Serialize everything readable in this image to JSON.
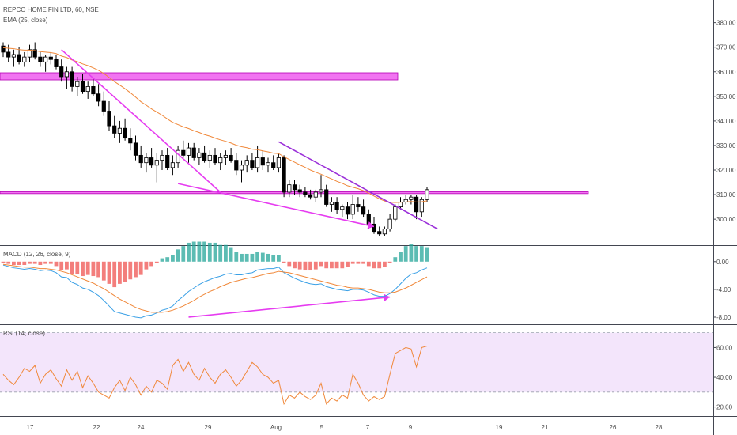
{
  "header": {
    "symbol_line": "REPCO HOME FIN LTD, 60, NSE",
    "ema_label": "EMA (25, close)"
  },
  "macd_panel": {
    "label": "MACD (12, 26, close, 9)"
  },
  "rsi_panel": {
    "label": "RSI (14, close)"
  },
  "colors": {
    "up_candle": "#ffffff",
    "down_candle": "#000000",
    "ema": "#f0883a",
    "zone": "#ee5cee",
    "trendline_magenta": "#e63cf0",
    "trendline_purple": "#9b30d9",
    "macd_line": "#3aa0e6",
    "signal_line": "#f0883a",
    "hist_pos": "#26a69a",
    "hist_neg": "#ef5350",
    "rsi_band": "#f3e5fb",
    "rsi_line": "#f0883a"
  },
  "chart_data": [
    {
      "type": "candlestick",
      "title": "REPCO HOME FIN LTD, 60, NSE",
      "x_tick_labels": [
        "17",
        "22",
        "24",
        "29",
        "Aug",
        "5",
        "7",
        "9",
        "19",
        "21",
        "26",
        "28"
      ],
      "ylim": [
        292,
        386
      ],
      "y_ticks": [
        300,
        310,
        320,
        330,
        340,
        350,
        360,
        370,
        380
      ],
      "y_tick_labels": [
        "300.00",
        "310.00",
        "320.00",
        "330.00",
        "340.00",
        "350.00",
        "360.00",
        "370.00",
        "380.00"
      ],
      "series": [
        {
          "kind": "ohlc",
          "points": [
            [
              370.5,
              372,
              366,
              368
            ],
            [
              368,
              371,
              364,
              366
            ],
            [
              366,
              369,
              362,
              367
            ],
            [
              367,
              370,
              363,
              364
            ],
            [
              364,
              368,
              362,
              366
            ],
            [
              366,
              371,
              364,
              369
            ],
            [
              369,
              372,
              365,
              366
            ],
            [
              366,
              368,
              362,
              364
            ],
            [
              364,
              367,
              360,
              366
            ],
            [
              366,
              368,
              363,
              365
            ],
            [
              365,
              367,
              361,
              362
            ],
            [
              362,
              365,
              356,
              358
            ],
            [
              358,
              362,
              353,
              360
            ],
            [
              360,
              362,
              352,
              354
            ],
            [
              354,
              358,
              350,
              356
            ],
            [
              356,
              359,
              351,
              352
            ],
            [
              352,
              356,
              349,
              354
            ],
            [
              354,
              357,
              350,
              351
            ],
            [
              351,
              355,
              346,
              348
            ],
            [
              348,
              352,
              342,
              344
            ],
            [
              344,
              348,
              336,
              338
            ],
            [
              338,
              342,
              333,
              335
            ],
            [
              335,
              340,
              331,
              337
            ],
            [
              337,
              341,
              332,
              333
            ],
            [
              333,
              337,
              328,
              331
            ],
            [
              331,
              334,
              324,
              326
            ],
            [
              326,
              330,
              321,
              323
            ],
            [
              323,
              327,
              319,
              325
            ],
            [
              325,
              329,
              321,
              322
            ],
            [
              322,
              327,
              315,
              324
            ],
            [
              324,
              328,
              320,
              326
            ],
            [
              326,
              329,
              320,
              321
            ],
            [
              321,
              326,
              318,
              323
            ],
            [
              323,
              330,
              321,
              328
            ],
            [
              328,
              332,
              325,
              326
            ],
            [
              326,
              331,
              323,
              329
            ],
            [
              329,
              331,
              324,
              325
            ],
            [
              325,
              329,
              322,
              327
            ],
            [
              327,
              330,
              323,
              324
            ],
            [
              324,
              328,
              321,
              326
            ],
            [
              326,
              329,
              322,
              323
            ],
            [
              323,
              327,
              320,
              325
            ],
            [
              325,
              328,
              322,
              326
            ],
            [
              326,
              329,
              323,
              324
            ],
            [
              324,
              327,
              318,
              320
            ],
            [
              320,
              324,
              315,
              322
            ],
            [
              322,
              326,
              319,
              324
            ],
            [
              324,
              327,
              320,
              321
            ],
            [
              321,
              330,
              319,
              325
            ],
            [
              325,
              328,
              320,
              322
            ],
            [
              322,
              325,
              319,
              323
            ],
            [
              323,
              326,
              320,
              321
            ],
            [
              321,
              327,
              319,
              325
            ],
            [
              325,
              326,
              309,
              311
            ],
            [
              311,
              316,
              309,
              314
            ],
            [
              314,
              316,
              310,
              312
            ],
            [
              312,
              314,
              309,
              311
            ],
            [
              311,
              313,
              309,
              310
            ],
            [
              310,
              312,
              308,
              309
            ],
            [
              309,
              312,
              307,
              311
            ],
            [
              311,
              318,
              309,
              312
            ],
            [
              312,
              314,
              305,
              306
            ],
            [
              306,
              309,
              303,
              307
            ],
            [
              307,
              309,
              302,
              304
            ],
            [
              304,
              306,
              301,
              305
            ],
            [
              305,
              307,
              300,
              302
            ],
            [
              302,
              310,
              300,
              306
            ],
            [
              306,
              309,
              303,
              305
            ],
            [
              305,
              308,
              301,
              302
            ],
            [
              302,
              304,
              296,
              298
            ],
            [
              298,
              301,
              294,
              295
            ],
            [
              295,
              297,
              293,
              294
            ],
            [
              294,
              297,
              293,
              296
            ],
            [
              296,
              302,
              295,
              300
            ],
            [
              300,
              306,
              299,
              305
            ],
            [
              305,
              309,
              304,
              307
            ],
            [
              307,
              310,
              306,
              308
            ],
            [
              308,
              310,
              306,
              309
            ],
            [
              309,
              310,
              300,
              303
            ],
            [
              303,
              309,
              301,
              308
            ],
            [
              308,
              313,
              307,
              312
            ]
          ]
        },
        {
          "name": "EMA (25, close)",
          "kind": "line",
          "values": [
            369.8,
            369.6,
            369.4,
            369.0,
            368.8,
            368.8,
            368.6,
            368.2,
            368.0,
            367.8,
            367.4,
            366.4,
            365.8,
            364.8,
            364.1,
            363.2,
            362.5,
            361.6,
            360.6,
            359.3,
            357.7,
            356.0,
            354.6,
            353.1,
            351.5,
            349.7,
            347.8,
            346.4,
            344.9,
            343.6,
            342.3,
            340.8,
            339.4,
            338.5,
            337.6,
            336.9,
            336.0,
            335.3,
            334.4,
            333.8,
            333.0,
            332.3,
            331.7,
            331.0,
            330.1,
            329.5,
            329.1,
            328.5,
            328.3,
            327.8,
            327.4,
            326.9,
            326.7,
            325.4,
            324.3,
            323.2,
            322.1,
            321.1,
            320.0,
            319.1,
            318.3,
            317.3,
            316.4,
            315.4,
            314.6,
            313.6,
            313.0,
            312.4,
            311.6,
            310.6,
            309.4,
            308.3,
            307.4,
            306.9,
            306.8,
            306.9,
            307.0,
            307.2,
            307.0,
            307.1,
            307.5
          ]
        }
      ]
    },
    {
      "type": "macd",
      "title": "MACD (12, 26, close, 9)",
      "ylim": [
        -8.8,
        1.8
      ],
      "y_ticks": [
        0,
        -4,
        -8
      ],
      "y_tick_labels": [
        "0.00",
        "-4.00",
        "-8.00"
      ],
      "series": [
        {
          "name": "MACD",
          "values": [
            -0.5,
            -0.7,
            -0.9,
            -1.0,
            -1.1,
            -1.0,
            -1.1,
            -1.3,
            -1.2,
            -1.3,
            -1.6,
            -2.2,
            -2.3,
            -3.0,
            -3.3,
            -3.8,
            -4.0,
            -4.4,
            -4.9,
            -5.6,
            -6.4,
            -7.2,
            -7.4,
            -7.6,
            -7.8,
            -8.0,
            -8.1,
            -7.8,
            -7.7,
            -7.4,
            -7.0,
            -6.8,
            -6.4,
            -5.6,
            -5.0,
            -4.3,
            -3.8,
            -3.3,
            -2.9,
            -2.6,
            -2.3,
            -2.1,
            -1.8,
            -1.7,
            -1.9,
            -1.9,
            -1.7,
            -1.6,
            -1.2,
            -1.1,
            -1.0,
            -1.0,
            -0.8,
            -1.6,
            -2.0,
            -2.4,
            -2.7,
            -3.0,
            -3.2,
            -3.3,
            -3.2,
            -3.6,
            -3.8,
            -4.0,
            -4.1,
            -4.2,
            -4.0,
            -4.0,
            -4.1,
            -4.4,
            -4.8,
            -5.0,
            -5.0,
            -4.6,
            -4.0,
            -3.2,
            -2.4,
            -1.8,
            -1.6,
            -1.2,
            -0.9
          ]
        },
        {
          "name": "Signal",
          "values": [
            -0.4,
            -0.5,
            -0.6,
            -0.7,
            -0.8,
            -0.8,
            -0.9,
            -1.0,
            -1.0,
            -1.1,
            -1.2,
            -1.4,
            -1.6,
            -1.9,
            -2.2,
            -2.5,
            -2.8,
            -3.1,
            -3.5,
            -3.9,
            -4.4,
            -4.9,
            -5.4,
            -5.8,
            -6.2,
            -6.6,
            -6.9,
            -7.1,
            -7.3,
            -7.3,
            -7.3,
            -7.2,
            -7.0,
            -6.7,
            -6.4,
            -6.0,
            -5.6,
            -5.1,
            -4.7,
            -4.3,
            -4.0,
            -3.6,
            -3.3,
            -3.0,
            -2.8,
            -2.6,
            -2.4,
            -2.3,
            -2.1,
            -1.9,
            -1.7,
            -1.6,
            -1.4,
            -1.5,
            -1.6,
            -1.8,
            -2.0,
            -2.2,
            -2.4,
            -2.6,
            -2.8,
            -3.0,
            -3.2,
            -3.4,
            -3.5,
            -3.7,
            -3.8,
            -3.8,
            -3.9,
            -4.0,
            -4.2,
            -4.4,
            -4.5,
            -4.5,
            -4.4,
            -4.1,
            -3.8,
            -3.4,
            -3.0,
            -2.6,
            -2.2
          ]
        }
      ]
    },
    {
      "type": "line",
      "title": "RSI (14, close)",
      "ylim": [
        15,
        73
      ],
      "y_ticks": [
        60,
        40,
        20
      ],
      "y_tick_labels": [
        "60.00",
        "40.00",
        "20.00"
      ],
      "band": [
        30,
        70
      ],
      "series": [
        {
          "name": "RSI",
          "values": [
            42,
            38,
            35,
            40,
            46,
            44,
            48,
            36,
            42,
            45,
            39,
            34,
            45,
            38,
            44,
            33,
            41,
            36,
            30,
            28,
            26,
            33,
            38,
            31,
            40,
            35,
            28,
            34,
            30,
            38,
            36,
            32,
            48,
            52,
            44,
            50,
            42,
            38,
            46,
            40,
            36,
            42,
            45,
            40,
            34,
            38,
            44,
            50,
            47,
            42,
            40,
            36,
            38,
            22,
            28,
            26,
            30,
            27,
            25,
            28,
            36,
            22,
            26,
            24,
            28,
            26,
            42,
            36,
            28,
            24,
            27,
            25,
            27,
            42,
            56,
            58,
            60,
            59,
            47,
            60,
            61
          ]
        }
      ]
    }
  ]
}
